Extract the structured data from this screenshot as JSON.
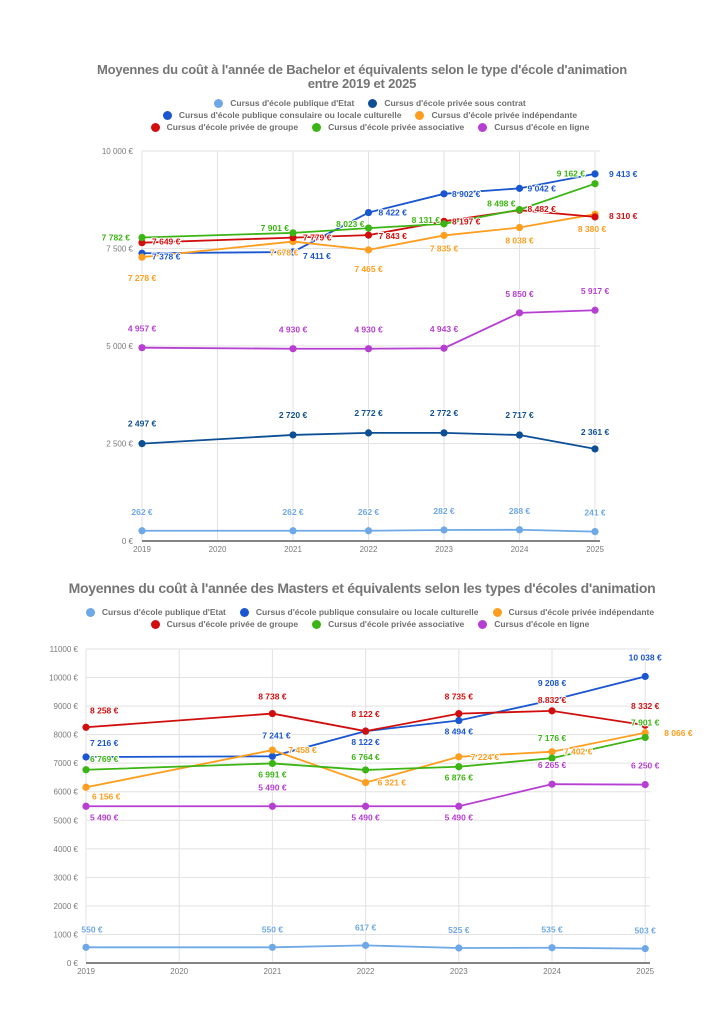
{
  "chart_data": [
    {
      "type": "line",
      "title_lines": [
        "Moyennes du coût à l'année de Bachelor et équivalents selon le type d'école d'animation",
        "entre 2019 et 2025"
      ],
      "xlabel": "",
      "ylabel": "",
      "x_ticks": [
        "2019",
        "2020",
        "2021",
        "2022",
        "2023",
        "2024",
        "2025"
      ],
      "xlim": [
        2019,
        2025
      ],
      "ylim": [
        0,
        10000
      ],
      "y_ticks": [
        {
          "value": 0,
          "label": "0 €"
        },
        {
          "value": 2500,
          "label": "2 500 €"
        },
        {
          "value": 5000,
          "label": "5 000 €"
        },
        {
          "value": 7500,
          "label": "7 500 €"
        },
        {
          "value": 10000,
          "label": "10 000 €"
        }
      ],
      "grid": true,
      "legend_position": "top",
      "x": [
        2019,
        2021,
        2022,
        2023,
        2024,
        2025
      ],
      "series": [
        {
          "name": "Cursus d'école publique d'Etat",
          "color": "#6fa8e6",
          "values": [
            262,
            262,
            262,
            282,
            288,
            241
          ],
          "labels": [
            "262 €",
            "262 €",
            "262 €",
            "282 €",
            "288 €",
            "241 €"
          ]
        },
        {
          "name": "Cursus d'école privée sous contrat",
          "color": "#0d4f94",
          "values": [
            2497,
            2720,
            2772,
            2772,
            2717,
            2361
          ],
          "labels": [
            "2 497 €",
            "2 720 €",
            "2 772 €",
            "2 772 €",
            "2 717 €",
            "2 361 €"
          ]
        },
        {
          "name": "Cursus d'école publique consulaire ou locale culturelle",
          "color": "#1a56cf",
          "values": [
            7378,
            7411,
            8422,
            8902,
            9042,
            9413
          ],
          "labels": [
            "7 378 €",
            "7 411 €",
            "8 422 €",
            "8 902 €",
            "9 042 €",
            "9 413 €"
          ]
        },
        {
          "name": "Cursus d'école privée indépendante",
          "color": "#ff9d1e",
          "values": [
            7278,
            7678,
            7465,
            7835,
            8038,
            8380
          ],
          "labels": [
            "7 278 €",
            "7 678 €",
            "7 465 €",
            "7 835 €",
            "8 038 €",
            "8 380 €"
          ]
        },
        {
          "name": "Cursus d'école privée de groupe",
          "color": "#d10e0e",
          "values": [
            7649,
            7779,
            7843,
            8197,
            8482,
            8310
          ],
          "labels": [
            "7 649 €",
            "7 779 €",
            "7 843 €",
            "8 197 €",
            "8 482 €",
            "8 310 €"
          ]
        },
        {
          "name": "Cursus d'école privée associative",
          "color": "#3bb513",
          "values": [
            7782,
            7901,
            8023,
            8131,
            8498,
            9162
          ],
          "labels": [
            "7 782 €",
            "7 901 €",
            "8 023 €",
            "8 131 €",
            "8 498 €",
            "9 162 €"
          ]
        },
        {
          "name": "Cursus d'école en ligne",
          "color": "#b63fd2",
          "values": [
            4957,
            4930,
            4930,
            4943,
            5850,
            5917
          ],
          "labels": [
            "4 957 €",
            "4 930 €",
            "4 930 €",
            "4 943 €",
            "5 850 €",
            "5 917 €"
          ]
        }
      ]
    },
    {
      "type": "line",
      "title_lines": [
        "Moyennes du coût à l'année des Masters et équivalents selon les types d'écoles d'animation"
      ],
      "xlabel": "",
      "ylabel": "",
      "x_ticks": [
        "2019",
        "2020",
        "2021",
        "2022",
        "2023",
        "2024",
        "2025"
      ],
      "xlim": [
        2019,
        2025
      ],
      "ylim": [
        0,
        11000
      ],
      "y_ticks": [
        {
          "value": 0,
          "label": "0 €"
        },
        {
          "value": 1000,
          "label": "1000 €"
        },
        {
          "value": 2000,
          "label": "2000 €"
        },
        {
          "value": 3000,
          "label": "3000 €"
        },
        {
          "value": 4000,
          "label": "4000 €"
        },
        {
          "value": 5000,
          "label": "5000 €"
        },
        {
          "value": 6000,
          "label": "6000 €"
        },
        {
          "value": 7000,
          "label": "7000 €"
        },
        {
          "value": 8000,
          "label": "8000 €"
        },
        {
          "value": 9000,
          "label": "9000 €"
        },
        {
          "value": 10000,
          "label": "10000 €"
        },
        {
          "value": 11000,
          "label": "11000 €"
        }
      ],
      "grid": true,
      "legend_position": "top",
      "x": [
        2019,
        2021,
        2022,
        2023,
        2024,
        2025
      ],
      "series": [
        {
          "name": "Cursus d'école publique d'Etat",
          "color": "#6fa8e6",
          "values": [
            550,
            550,
            617,
            525,
            535,
            503
          ],
          "labels": [
            "550 €",
            "550 €",
            "617 €",
            "525 €",
            "535 €",
            "503 €"
          ]
        },
        {
          "name": "Cursus d'école publique consulaire ou locale culturelle",
          "color": "#1a56cf",
          "values": [
            7216,
            7241,
            8122,
            8494,
            9208,
            10038
          ],
          "labels": [
            "7 216 €",
            "7 241 €",
            "8 122 €",
            "8 494 €",
            "9 208 €",
            "10 038 €"
          ]
        },
        {
          "name": "Cursus d'école privée indépendante",
          "color": "#ff9d1e",
          "values": [
            6156,
            7458,
            6321,
            7224,
            7402,
            8066
          ],
          "labels": [
            "6 156 €",
            "7 458 €",
            "6 321 €",
            "7 224 €",
            "7 402 €",
            "8 066 €"
          ]
        },
        {
          "name": "Cursus d'école privée de groupe",
          "color": "#d10e0e",
          "values": [
            8258,
            8738,
            8122,
            8735,
            8832,
            8332
          ],
          "labels": [
            "8 258 €",
            "8 738 €",
            "8 122 €",
            "8 735 €",
            "8 832 €",
            "8 332 €"
          ]
        },
        {
          "name": "Cursus d'école privée associative",
          "color": "#3bb513",
          "values": [
            6769,
            6991,
            6764,
            6876,
            7176,
            7901
          ],
          "labels": [
            "6 769 €",
            "6 991 €",
            "6 764 €",
            "6 876 €",
            "7 176 €",
            "7 901 €"
          ]
        },
        {
          "name": "Cursus d'école en ligne",
          "color": "#b63fd2",
          "values": [
            5490,
            5490,
            5490,
            5490,
            6265,
            6250
          ],
          "labels": [
            "5 490 €",
            "5 490 €",
            "5 490 €",
            "5 490 €",
            "6 265 €",
            "6 250 €"
          ]
        }
      ]
    }
  ]
}
